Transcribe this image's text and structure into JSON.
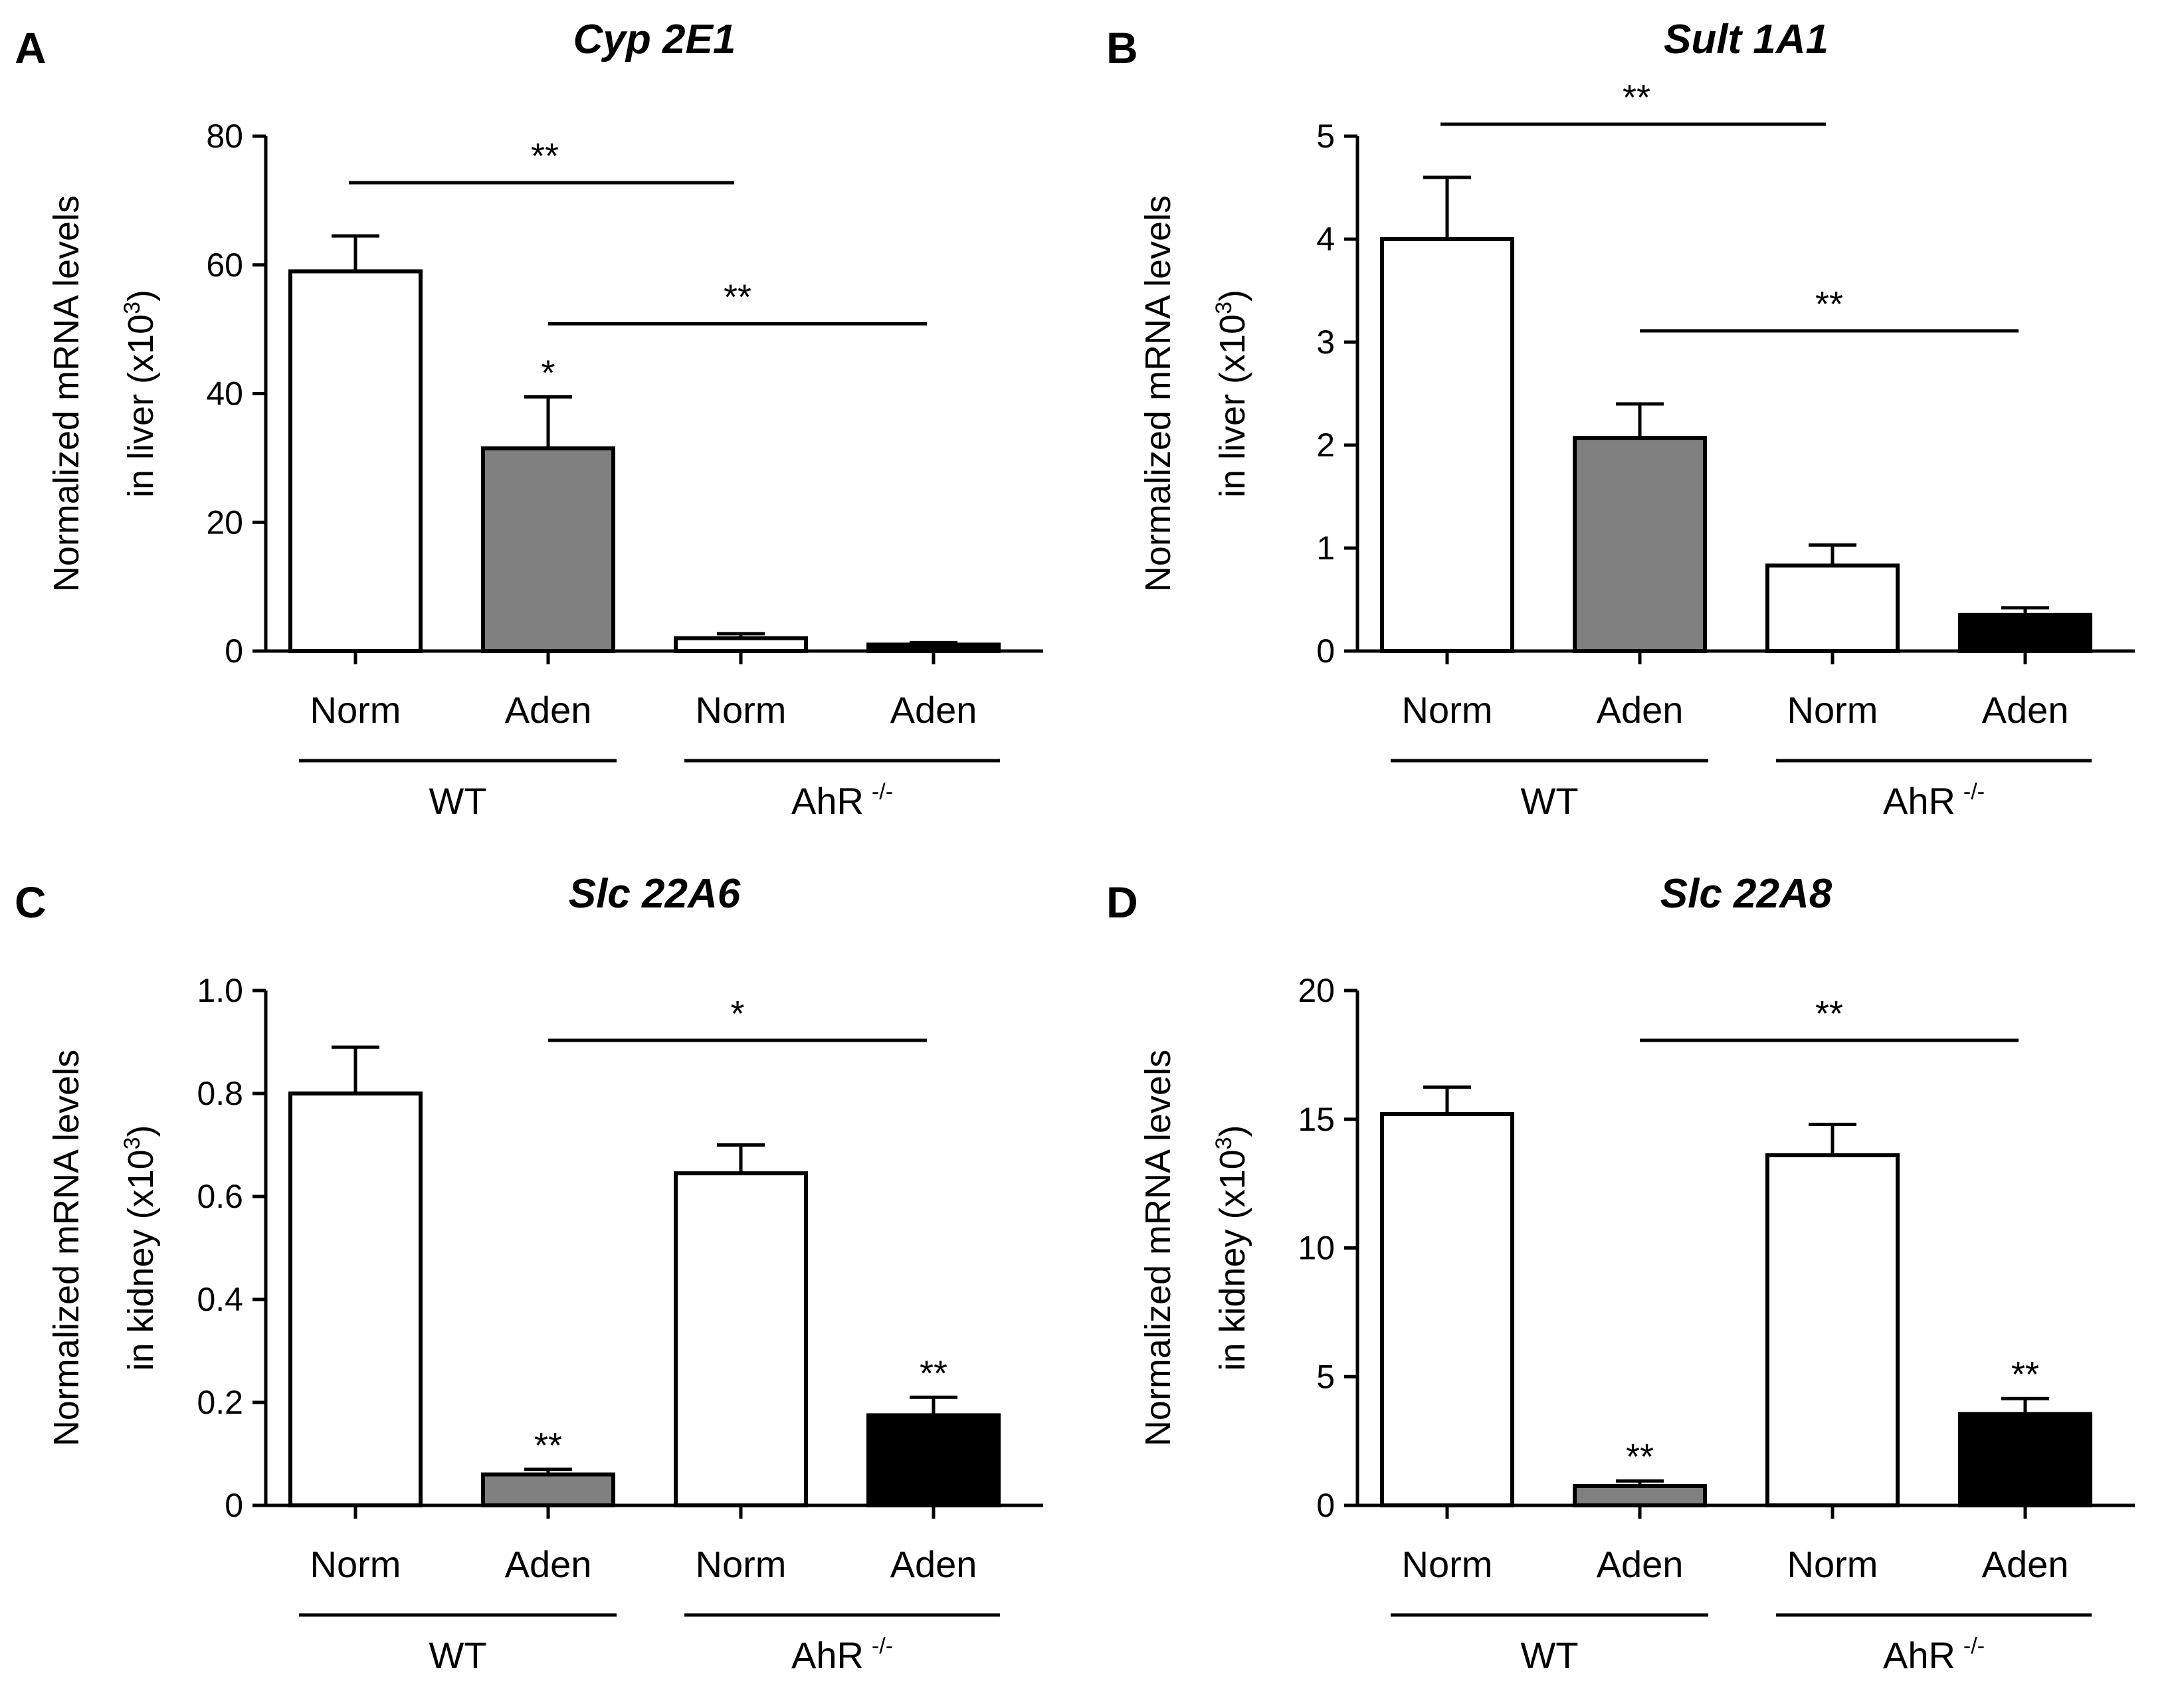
{
  "panels": [
    {
      "letter": "A",
      "title": "Cyp 2E1",
      "ylabel_line1": "Normalized mRNA levels",
      "ylabel_line2": "in liver (x10",
      "ylabel_sup": "3",
      "ylabel_close": ")",
      "ylim": [
        0,
        80
      ],
      "yticks": [
        "0",
        "20",
        "40",
        "60",
        "80"
      ],
      "categories": [
        "Norm",
        "Aden",
        "Norm",
        "Aden"
      ],
      "groups": [
        {
          "label": "WT",
          "sup": ""
        },
        {
          "label": "AhR",
          "sup": "-/-"
        }
      ],
      "colors": [
        "#ffffff",
        "#808080",
        "#ffffff",
        "#000000"
      ],
      "values": [
        59,
        31.5,
        2,
        1
      ],
      "errors": [
        5.5,
        8,
        0.7,
        0.3
      ],
      "bar_stars": [
        "",
        "*",
        "",
        ""
      ],
      "brackets": [
        {
          "from": 0,
          "to": 2,
          "label": "**"
        },
        {
          "from": 1,
          "to": 3,
          "label": "**"
        }
      ]
    },
    {
      "letter": "B",
      "title": "Sult 1A1",
      "ylabel_line1": "Normalized mRNA levels",
      "ylabel_line2": "in liver (x10",
      "ylabel_sup": "3",
      "ylabel_close": ")",
      "ylim": [
        0,
        5
      ],
      "yticks": [
        "0",
        "1",
        "2",
        "3",
        "4",
        "5"
      ],
      "categories": [
        "Norm",
        "Aden",
        "Norm",
        "Aden"
      ],
      "groups": [
        {
          "label": "WT",
          "sup": ""
        },
        {
          "label": "AhR",
          "sup": "-/-"
        }
      ],
      "colors": [
        "#ffffff",
        "#808080",
        "#ffffff",
        "#000000"
      ],
      "values": [
        4.0,
        2.07,
        0.83,
        0.35
      ],
      "errors": [
        0.6,
        0.33,
        0.2,
        0.07
      ],
      "bar_stars": [
        "",
        "",
        "",
        ""
      ],
      "brackets": [
        {
          "from": 0,
          "to": 2,
          "label": "**"
        },
        {
          "from": 1,
          "to": 3,
          "label": "**"
        }
      ]
    },
    {
      "letter": "C",
      "title": "Slc 22A6",
      "ylabel_line1": "Normalized mRNA levels",
      "ylabel_line2": "in kidney (x10",
      "ylabel_sup": "3",
      "ylabel_close": ")",
      "ylim": [
        0,
        1.0
      ],
      "yticks": [
        "0",
        "0.2",
        "0.4",
        "0.6",
        "0.8",
        "1.0"
      ],
      "categories": [
        "Norm",
        "Aden",
        "Norm",
        "Aden"
      ],
      "groups": [
        {
          "label": "WT",
          "sup": ""
        },
        {
          "label": "AhR",
          "sup": "-/-"
        }
      ],
      "colors": [
        "#ffffff",
        "#808080",
        "#ffffff",
        "#000000"
      ],
      "values": [
        0.8,
        0.06,
        0.645,
        0.175
      ],
      "errors": [
        0.09,
        0.01,
        0.055,
        0.035
      ],
      "bar_stars": [
        "",
        "**",
        "",
        "**"
      ],
      "brackets": [
        {
          "from": 1,
          "to": 3,
          "label": "*"
        }
      ]
    },
    {
      "letter": "D",
      "title": "Slc 22A8",
      "ylabel_line1": "Normalized mRNA levels",
      "ylabel_line2": "in kidney (x10",
      "ylabel_sup": "3",
      "ylabel_close": ")",
      "ylim": [
        0,
        20
      ],
      "yticks": [
        "0",
        "5",
        "10",
        "15",
        "20"
      ],
      "categories": [
        "Norm",
        "Aden",
        "Norm",
        "Aden"
      ],
      "groups": [
        {
          "label": "WT",
          "sup": ""
        },
        {
          "label": "AhR",
          "sup": "-/-"
        }
      ],
      "colors": [
        "#ffffff",
        "#808080",
        "#ffffff",
        "#000000"
      ],
      "values": [
        15.2,
        0.75,
        13.6,
        3.55
      ],
      "errors": [
        1.05,
        0.2,
        1.2,
        0.6
      ],
      "bar_stars": [
        "",
        "**",
        "",
        "**"
      ],
      "brackets": [
        {
          "from": 1,
          "to": 3,
          "label": "**"
        }
      ]
    }
  ],
  "chart_data": [
    {
      "type": "bar",
      "title": "Cyp 2E1",
      "ylabel": "Normalized mRNA levels in liver (x10^3)",
      "xlabel": "",
      "categories": [
        "WT Norm",
        "WT Aden",
        "AhR -/- Norm",
        "AhR -/- Aden"
      ],
      "values": [
        59,
        31.5,
        2,
        1
      ],
      "errors": [
        5.5,
        8,
        0.7,
        0.3
      ],
      "ylim": [
        0,
        80
      ]
    },
    {
      "type": "bar",
      "title": "Sult 1A1",
      "ylabel": "Normalized mRNA levels in liver (x10^3)",
      "xlabel": "",
      "categories": [
        "WT Norm",
        "WT Aden",
        "AhR -/- Norm",
        "AhR -/- Aden"
      ],
      "values": [
        4.0,
        2.07,
        0.83,
        0.35
      ],
      "errors": [
        0.6,
        0.33,
        0.2,
        0.07
      ],
      "ylim": [
        0,
        5
      ]
    },
    {
      "type": "bar",
      "title": "Slc 22A6",
      "ylabel": "Normalized mRNA levels in kidney (x10^3)",
      "xlabel": "",
      "categories": [
        "WT Norm",
        "WT Aden",
        "AhR -/- Norm",
        "AhR -/- Aden"
      ],
      "values": [
        0.8,
        0.06,
        0.645,
        0.175
      ],
      "errors": [
        0.09,
        0.01,
        0.055,
        0.035
      ],
      "ylim": [
        0,
        1.0
      ]
    },
    {
      "type": "bar",
      "title": "Slc 22A8",
      "ylabel": "Normalized mRNA levels in kidney (x10^3)",
      "xlabel": "",
      "categories": [
        "WT Norm",
        "WT Aden",
        "AhR -/- Norm",
        "AhR -/- Aden"
      ],
      "values": [
        15.2,
        0.75,
        13.6,
        3.55
      ],
      "errors": [
        1.05,
        0.2,
        1.2,
        0.6
      ],
      "ylim": [
        0,
        20
      ]
    }
  ]
}
